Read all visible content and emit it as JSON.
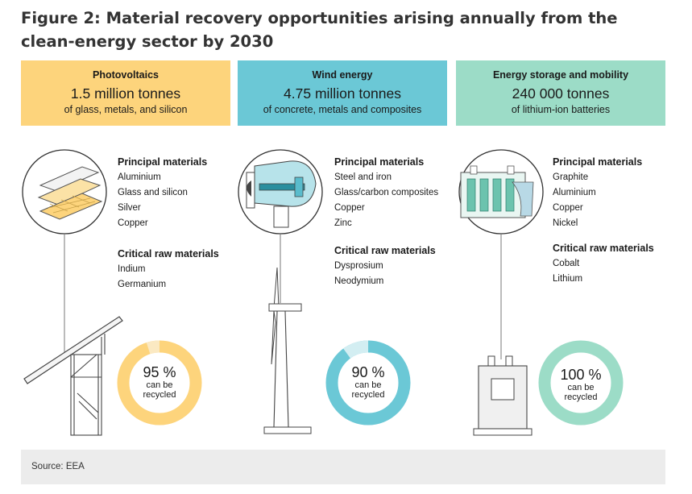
{
  "title": "Figure 2: Material recovery opportunities arising annually from the clean-energy sector by 2030",
  "colors": {
    "photovoltaics": "#fdd47c",
    "wind": "#6bc8d6",
    "storage": "#9cdcc7",
    "line": "#333333"
  },
  "sectors": [
    {
      "title": "Photovoltaics",
      "amount": "1.5 million tonnes",
      "description": "of glass, metals, and silicon",
      "principal_heading": "Principal materials",
      "principal": [
        "Aluminium",
        "Glass and silicon",
        "Silver",
        "Copper"
      ],
      "critical_heading": "Critical raw materials",
      "critical": [
        "Indium",
        "Germanium"
      ],
      "recycled_percent": 95,
      "recycled_label": "95 %",
      "recycled_text_1": "can be",
      "recycled_text_2": "recycled",
      "icon": "solar-panel-icon"
    },
    {
      "title": "Wind energy",
      "amount": "4.75 million tonnes",
      "description": "of concrete, metals and composites",
      "principal_heading": "Principal materials",
      "principal": [
        "Steel and iron",
        "Glass/carbon composites",
        "Copper",
        "Zinc"
      ],
      "critical_heading": "Critical raw materials",
      "critical": [
        "Dysprosium",
        "Neodymium"
      ],
      "recycled_percent": 90,
      "recycled_label": "90 %",
      "recycled_text_1": "can be",
      "recycled_text_2": "recycled",
      "icon": "wind-turbine-icon"
    },
    {
      "title": "Energy storage and mobility",
      "amount": "240 000 tonnes",
      "description": "of lithium-ion batteries",
      "principal_heading": "Principal materials",
      "principal": [
        "Graphite",
        "Aluminium",
        "Copper",
        "Nickel"
      ],
      "critical_heading": "Critical raw materials",
      "critical": [
        "Cobalt",
        "Lithium"
      ],
      "recycled_percent": 100,
      "recycled_label": "100 %",
      "recycled_text_1": "can be",
      "recycled_text_2": "recycled",
      "icon": "battery-icon"
    }
  ],
  "source": "Source: EEA"
}
